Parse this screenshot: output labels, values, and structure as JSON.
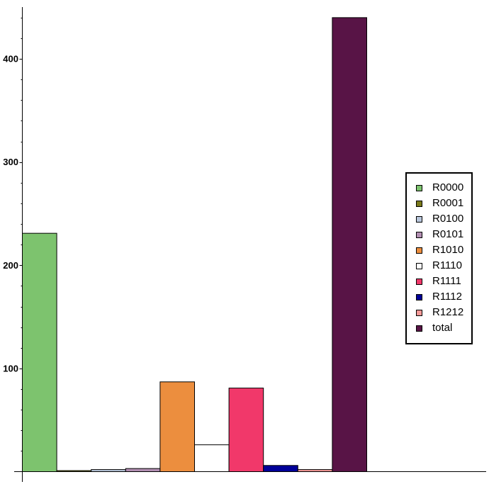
{
  "chart_data": {
    "type": "bar",
    "title": "",
    "xlabel": "",
    "ylabel": "",
    "ylim": [
      0,
      440
    ],
    "yticks": [
      100,
      200,
      300,
      400
    ],
    "grid": false,
    "legend_position": "right",
    "categories": [
      "R0000",
      "R0001",
      "R0100",
      "R0101",
      "R1010",
      "R1110",
      "R1111",
      "R1112",
      "R1212",
      "total"
    ],
    "values": [
      231,
      1,
      2,
      3,
      87,
      26,
      81,
      6,
      2,
      440
    ],
    "colors": [
      "#7dc36e",
      "#7b7a1b",
      "#b9c7dc",
      "#b28fb2",
      "#ec8e3e",
      "#ffffff",
      "#f1386a",
      "#000099",
      "#f59a98",
      "#581446"
    ]
  }
}
